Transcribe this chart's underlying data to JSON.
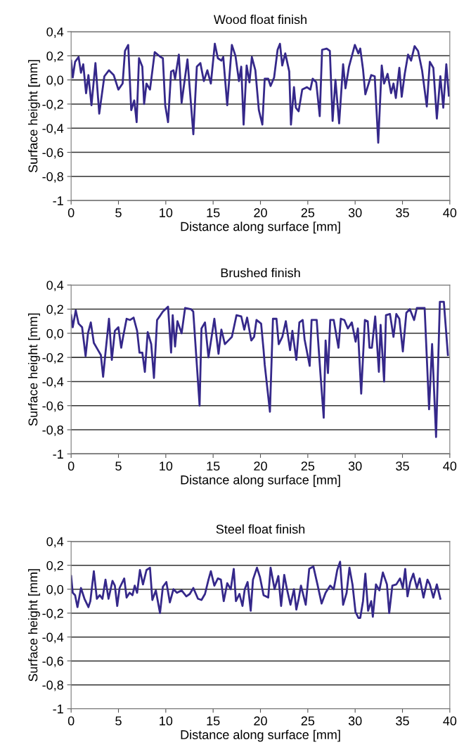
{
  "chart_data": [
    {
      "type": "line",
      "title": "Wood float finish",
      "xlabel": "Distance along surface [mm]",
      "ylabel": "Surface height [mm]",
      "xlim": [
        0,
        40
      ],
      "xticks": [
        0,
        5,
        10,
        15,
        20,
        25,
        30,
        35,
        40
      ],
      "ylim": [
        -1,
        0.4
      ],
      "yticks": [
        {
          "value": -1,
          "label": "-1"
        },
        {
          "value": -0.8,
          "label": "-0,8"
        },
        {
          "value": -0.6,
          "label": "-0,6"
        },
        {
          "value": -0.4,
          "label": "-0,4"
        },
        {
          "value": -0.2,
          "label": "-0,2"
        },
        {
          "value": 0,
          "label": "0,0"
        },
        {
          "value": 0.2,
          "label": "0,2"
        },
        {
          "value": 0.4,
          "label": "0,4"
        }
      ],
      "grid": "y",
      "line_style": "solid",
      "marker": "none",
      "series": [
        {
          "color": "#35288a",
          "x": [
            0,
            0.17,
            0.42,
            0.79,
            1.04,
            1.28,
            1.58,
            1.83,
            2.15,
            2.57,
            2.97,
            3.51,
            4.0,
            4.5,
            4.99,
            5.44,
            5.69,
            6.03,
            6.35,
            6.67,
            6.92,
            7.17,
            7.52,
            7.71,
            7.96,
            8.33,
            8.83,
            9.44,
            9.69,
            9.94,
            10.24,
            10.56,
            10.81,
            10.98,
            11.38,
            11.67,
            12.29,
            12.53,
            12.91,
            13.28,
            13.65,
            14.02,
            14.39,
            14.76,
            15.18,
            15.5,
            15.87,
            16.07,
            16.49,
            16.98,
            17.36,
            17.73,
            17.97,
            18.22,
            18.54,
            18.84,
            19.09,
            19.46,
            19.83,
            20.2,
            20.45,
            20.82,
            21.07,
            21.44,
            21.81,
            22.06,
            22.3,
            22.62,
            23.04,
            23.22,
            23.54,
            23.74,
            24.03,
            24.41,
            24.9,
            25.27,
            25.52,
            25.89,
            26.26,
            26.51,
            27.0,
            27.33,
            27.62,
            27.92,
            28.31,
            28.73,
            28.98,
            29.35,
            29.97,
            30.34,
            30.54,
            30.83,
            31.08,
            31.7,
            32.07,
            32.44,
            32.81,
            33.06,
            33.43,
            33.8,
            34.05,
            34.3,
            34.67,
            34.92,
            35.24,
            35.59,
            35.91,
            36.28,
            36.65,
            37.07,
            37.57,
            37.89,
            38.26,
            38.63,
            39.0,
            39.31,
            39.63,
            39.9
          ],
          "values": [
            0.16,
            0.02,
            0.15,
            0.19,
            0.06,
            0.13,
            -0.11,
            0.04,
            -0.21,
            0.14,
            -0.28,
            0.03,
            0.08,
            0.04,
            -0.08,
            -0.03,
            0.24,
            0.29,
            -0.25,
            -0.17,
            -0.35,
            0.18,
            0.11,
            -0.2,
            -0.03,
            -0.08,
            0.23,
            0.19,
            0.18,
            -0.21,
            -0.35,
            0.07,
            0.08,
            0.01,
            0.21,
            -0.19,
            0.17,
            -0.07,
            -0.45,
            0.11,
            0.14,
            -0.01,
            0.08,
            -0.03,
            0.3,
            0.18,
            0.16,
            0.19,
            -0.21,
            0.29,
            0.2,
            -0.01,
            0.11,
            -0.37,
            0.12,
            -0.02,
            0.19,
            0.08,
            -0.25,
            -0.37,
            0.01,
            0.01,
            -0.05,
            0.02,
            0.25,
            0.3,
            0.12,
            0.22,
            0.07,
            -0.37,
            -0.06,
            -0.23,
            -0.26,
            -0.08,
            -0.06,
            -0.08,
            0.01,
            -0.02,
            -0.3,
            0.25,
            0.26,
            0.24,
            -0.34,
            0.0,
            -0.36,
            0.13,
            -0.07,
            0.11,
            0.29,
            0.22,
            0.26,
            0.09,
            -0.12,
            0.04,
            0.03,
            -0.52,
            0.12,
            -0.03,
            0.05,
            -0.11,
            -0.03,
            -0.15,
            0.1,
            -0.14,
            0.05,
            0.21,
            0.16,
            0.28,
            0.24,
            0.08,
            -0.22,
            0.15,
            0.1,
            -0.32,
            0.03,
            -0.23,
            0.13,
            -0.13
          ]
        }
      ]
    },
    {
      "type": "line",
      "title": "Brushed finish",
      "xlabel": "Distance along surface [mm]",
      "ylabel": "Surface height [mm]",
      "xlim": [
        0,
        40
      ],
      "xticks": [
        0,
        5,
        10,
        15,
        20,
        25,
        30,
        35,
        40
      ],
      "ylim": [
        -1,
        0.4
      ],
      "yticks": [
        {
          "value": -1,
          "label": "-1"
        },
        {
          "value": -0.8,
          "label": "-0,8"
        },
        {
          "value": -0.6,
          "label": "-0,6"
        },
        {
          "value": -0.4,
          "label": "-0,4"
        },
        {
          "value": -0.2,
          "label": "-0,2"
        },
        {
          "value": 0,
          "label": "0,0"
        },
        {
          "value": 0.2,
          "label": "0,2"
        },
        {
          "value": 0.4,
          "label": "0,4"
        }
      ],
      "grid": "y",
      "line_style": "solid",
      "marker": "none",
      "series": [
        {
          "color": "#35288a",
          "x": [
            0,
            0.17,
            0.49,
            0.79,
            1.16,
            1.53,
            1.78,
            2.08,
            2.4,
            2.77,
            3.14,
            3.38,
            3.63,
            4.0,
            4.3,
            4.62,
            4.99,
            5.29,
            5.49,
            5.86,
            6.23,
            6.6,
            6.97,
            7.22,
            7.52,
            7.79,
            8.09,
            8.46,
            8.75,
            9.08,
            9.44,
            9.69,
            10.24,
            10.56,
            10.73,
            10.98,
            11.23,
            11.67,
            12.04,
            12.66,
            12.9,
            13.57,
            13.77,
            14.14,
            14.51,
            15.13,
            15.57,
            15.87,
            16.24,
            16.61,
            16.98,
            17.47,
            17.97,
            18.29,
            18.59,
            19.03,
            19.33,
            19.58,
            20.07,
            20.33,
            20.45,
            21.0,
            21.32,
            21.69,
            21.93,
            22.31,
            22.68,
            23.13,
            23.37,
            23.79,
            24.11,
            24.46,
            24.66,
            25.2,
            25.4,
            25.94,
            26.33,
            26.68,
            26.88,
            27.13,
            27.37,
            27.74,
            28.24,
            28.49,
            28.86,
            29.23,
            29.65,
            30.05,
            30.29,
            30.64,
            31.03,
            31.33,
            31.52,
            31.77,
            32.12,
            32.51,
            32.69,
            33.06,
            33.26,
            33.68,
            34.05,
            34.35,
            34.67,
            35.04,
            35.41,
            35.78,
            36.23,
            36.52,
            36.97,
            37.34,
            37.81,
            38.13,
            38.55,
            38.95,
            39.37,
            39.8
          ],
          "values": [
            0.15,
            0.05,
            0.19,
            0.08,
            0.05,
            -0.19,
            0.0,
            0.09,
            -0.08,
            -0.13,
            -0.18,
            -0.36,
            -0.16,
            0.12,
            -0.22,
            0.02,
            0.05,
            -0.12,
            -0.03,
            0.12,
            0.11,
            0.13,
            0.02,
            -0.16,
            -0.16,
            -0.32,
            0.01,
            -0.09,
            -0.37,
            0.11,
            0.15,
            0.18,
            0.22,
            -0.16,
            0.15,
            -0.11,
            0.1,
            0.0,
            0.21,
            0.2,
            0.18,
            -0.6,
            0.04,
            0.09,
            -0.2,
            0.12,
            -0.17,
            0.03,
            -0.09,
            -0.06,
            -0.03,
            0.15,
            0.14,
            0.03,
            0.13,
            -0.06,
            -0.03,
            0.11,
            0.08,
            -0.14,
            -0.26,
            -0.65,
            0.12,
            0.12,
            -0.09,
            -0.03,
            0.1,
            -0.14,
            0.02,
            -0.22,
            0.09,
            0.11,
            -0.05,
            -0.27,
            0.11,
            0.11,
            -0.33,
            -0.7,
            -0.06,
            -0.33,
            0.11,
            0.11,
            -0.12,
            0.12,
            0.11,
            0.04,
            0.09,
            -0.07,
            0.04,
            -0.5,
            0.11,
            0.1,
            -0.12,
            -0.12,
            0.14,
            -0.32,
            0.07,
            -0.4,
            0.15,
            0.16,
            -0.03,
            0.16,
            0.12,
            -0.15,
            0.17,
            0.2,
            0.11,
            0.21,
            0.21,
            0.21,
            -0.63,
            -0.09,
            -0.86,
            0.26,
            0.26,
            -0.18
          ]
        }
      ]
    },
    {
      "type": "line",
      "title": "Steel float finish",
      "xlabel": "Distance along surface [mm]",
      "ylabel": "Surface height [mm]",
      "xlim": [
        0,
        40
      ],
      "xticks": [
        0,
        5,
        10,
        15,
        20,
        25,
        30,
        35,
        40
      ],
      "ylim": [
        -1,
        0.4
      ],
      "yticks": [
        {
          "value": -1,
          "label": "-1"
        },
        {
          "value": -0.8,
          "label": "-0,8"
        },
        {
          "value": -0.6,
          "label": "-0,6"
        },
        {
          "value": -0.4,
          "label": "-0,4"
        },
        {
          "value": -0.2,
          "label": "-0,2"
        },
        {
          "value": 0,
          "label": "0,0"
        },
        {
          "value": 0.2,
          "label": "0,2"
        },
        {
          "value": 0.4,
          "label": "0,4"
        }
      ],
      "grid": "y",
      "line_style": "solid",
      "marker": "none",
      "series": [
        {
          "color": "#35288a",
          "x": [
            0,
            0.17,
            0.42,
            0.67,
            1.04,
            1.41,
            1.83,
            2.03,
            2.4,
            2.72,
            3.02,
            3.31,
            3.63,
            3.95,
            4.37,
            4.62,
            4.87,
            5.12,
            5.61,
            5.86,
            6.18,
            6.48,
            6.72,
            6.97,
            7.27,
            7.59,
            7.96,
            8.33,
            8.58,
            8.95,
            9.39,
            9.69,
            10.06,
            10.43,
            10.81,
            11.18,
            11.67,
            12.17,
            12.53,
            12.91,
            13.4,
            13.77,
            14.14,
            14.51,
            14.76,
            15.13,
            15.5,
            15.82,
            16.12,
            16.49,
            16.86,
            17.18,
            17.41,
            17.78,
            18.1,
            18.34,
            18.64,
            18.97,
            19.21,
            19.63,
            19.95,
            20.33,
            20.82,
            21.07,
            21.49,
            21.89,
            22.18,
            22.51,
            22.8,
            23.17,
            23.54,
            23.79,
            24.04,
            24.28,
            24.78,
            25.15,
            25.59,
            26.02,
            26.46,
            26.88,
            27.37,
            27.74,
            28.11,
            28.41,
            28.73,
            29.1,
            29.4,
            29.72,
            30.04,
            30.34,
            30.54,
            30.83,
            31.08,
            31.37,
            31.7,
            31.87,
            32.2,
            32.56,
            32.93,
            33.36,
            33.6,
            33.93,
            34.35,
            34.74,
            35.04,
            35.29,
            35.53,
            35.83,
            36.15,
            36.52,
            36.82,
            37.22,
            37.64,
            37.89,
            38.26,
            38.63,
            39.0
          ],
          "values": [
            0.11,
            -0.03,
            -0.05,
            -0.15,
            0.01,
            -0.08,
            -0.15,
            -0.1,
            0.15,
            -0.08,
            -0.05,
            -0.08,
            0.08,
            -0.08,
            0.07,
            0.03,
            -0.14,
            0.01,
            0.09,
            -0.07,
            -0.03,
            -0.05,
            0.03,
            -0.03,
            0.16,
            0.04,
            0.16,
            0.18,
            -0.09,
            -0.01,
            -0.2,
            0.02,
            0.06,
            -0.11,
            0.0,
            -0.03,
            -0.01,
            -0.06,
            -0.04,
            0.01,
            -0.08,
            -0.09,
            -0.04,
            0.08,
            0.15,
            0.03,
            0.09,
            0.08,
            -0.1,
            0.05,
            0.0,
            0.17,
            -0.1,
            -0.04,
            -0.14,
            0.0,
            0.06,
            -0.18,
            0.08,
            0.18,
            0.1,
            -0.05,
            -0.07,
            0.18,
            0.0,
            0.11,
            -0.14,
            0.12,
            0.0,
            -0.13,
            0.0,
            -0.17,
            -0.08,
            0.03,
            -0.13,
            0.17,
            0.19,
            0.04,
            -0.12,
            -0.03,
            0.03,
            0.0,
            0.16,
            0.23,
            -0.13,
            -0.03,
            0.18,
            0.04,
            -0.19,
            -0.24,
            -0.24,
            -0.1,
            0.13,
            -0.18,
            -0.1,
            -0.23,
            0.04,
            -0.01,
            0.14,
            0.04,
            -0.2,
            0.03,
            0.04,
            0.09,
            0.01,
            0.17,
            -0.06,
            0.06,
            0.13,
            0.01,
            0.09,
            -0.07,
            0.08,
            0.04,
            -0.07,
            0.04,
            -0.08
          ]
        }
      ]
    }
  ]
}
